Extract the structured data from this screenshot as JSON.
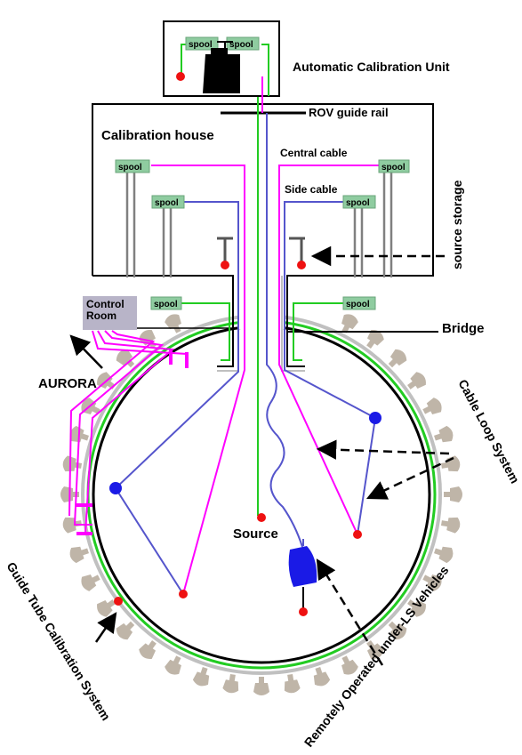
{
  "labels": {
    "acu": "Automatic Calibration Unit",
    "rov_rail": "ROV guide rail",
    "cal_house": "Calibration house",
    "central_cable": "Central cable",
    "side_cable": "Side cable",
    "source_storage": "source storage",
    "bridge": "Bridge",
    "aurora": "AURORA",
    "cable_loop": "Cable Loop System",
    "source": "Source",
    "gtcs": "Guide Tube Calibration System",
    "rov": "Remotely Operated under-LS Vehicles"
  },
  "control_room": {
    "line1": "Control",
    "line2": "Room"
  },
  "spool_label": "spool",
  "colors": {
    "spool_fill": "#8fcca0",
    "magenta": "#ff00ff",
    "blue": "#5555cc",
    "green": "#22cc22",
    "red": "#ee1111",
    "pmt": "#bfb5a8",
    "control_room": "#b8b4c8",
    "rov_blue": "#1a1ae6"
  }
}
